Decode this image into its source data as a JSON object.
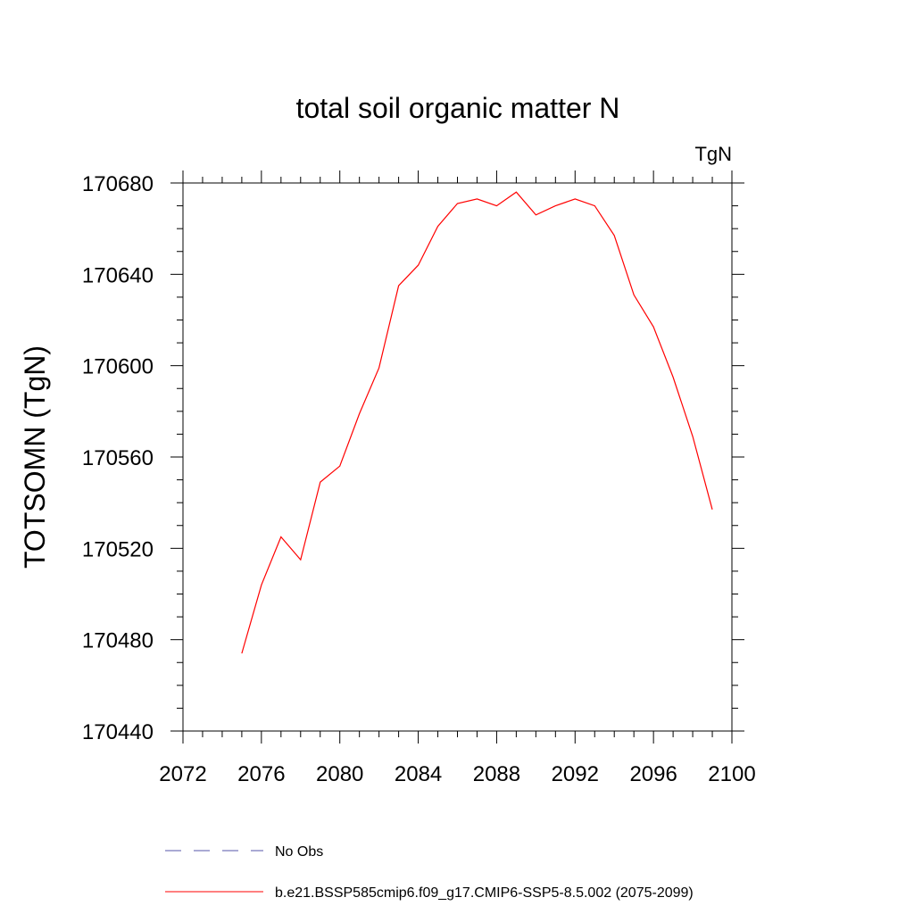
{
  "chart_data": {
    "type": "line",
    "title": "total soil organic matter N",
    "units_label": "TgN",
    "ylabel": "TOTSOMN  (TgN)",
    "xlabel": "",
    "xlim": [
      2072,
      2100
    ],
    "ylim": [
      170440,
      170680
    ],
    "x_ticks": [
      2072,
      2076,
      2080,
      2084,
      2088,
      2092,
      2096,
      2100
    ],
    "y_ticks": [
      170440,
      170480,
      170520,
      170560,
      170600,
      170640,
      170680
    ],
    "x_minor_step": 1,
    "y_minor_step": 10,
    "grid": false,
    "legend_position": "bottom",
    "series": [
      {
        "name": "b.e21.BSSP585cmip6.f09_g17.CMIP6-SSP5-8.5.002 (2075-2099)",
        "color": "#ff0000",
        "dash": "solid",
        "x": [
          2075,
          2076,
          2077,
          2078,
          2079,
          2080,
          2081,
          2082,
          2083,
          2084,
          2085,
          2086,
          2087,
          2088,
          2089,
          2090,
          2091,
          2092,
          2093,
          2094,
          2095,
          2096,
          2097,
          2098,
          2099
        ],
        "values": [
          170474,
          170504,
          170525,
          170515,
          170549,
          170556,
          170579,
          170599,
          170635,
          170644,
          170661,
          170671,
          170673,
          170670,
          170676,
          170666,
          170670,
          170673,
          170670,
          170657,
          170631,
          170617,
          170595,
          170569,
          170537
        ]
      }
    ],
    "legend": [
      {
        "label": "No Obs",
        "color": "#5555aa",
        "dash": "dashed"
      },
      {
        "label": "b.e21.BSSP585cmip6.f09_g17.CMIP6-SSP5-8.5.002 (2075-2099)",
        "color": "#ff0000",
        "dash": "solid"
      }
    ]
  }
}
